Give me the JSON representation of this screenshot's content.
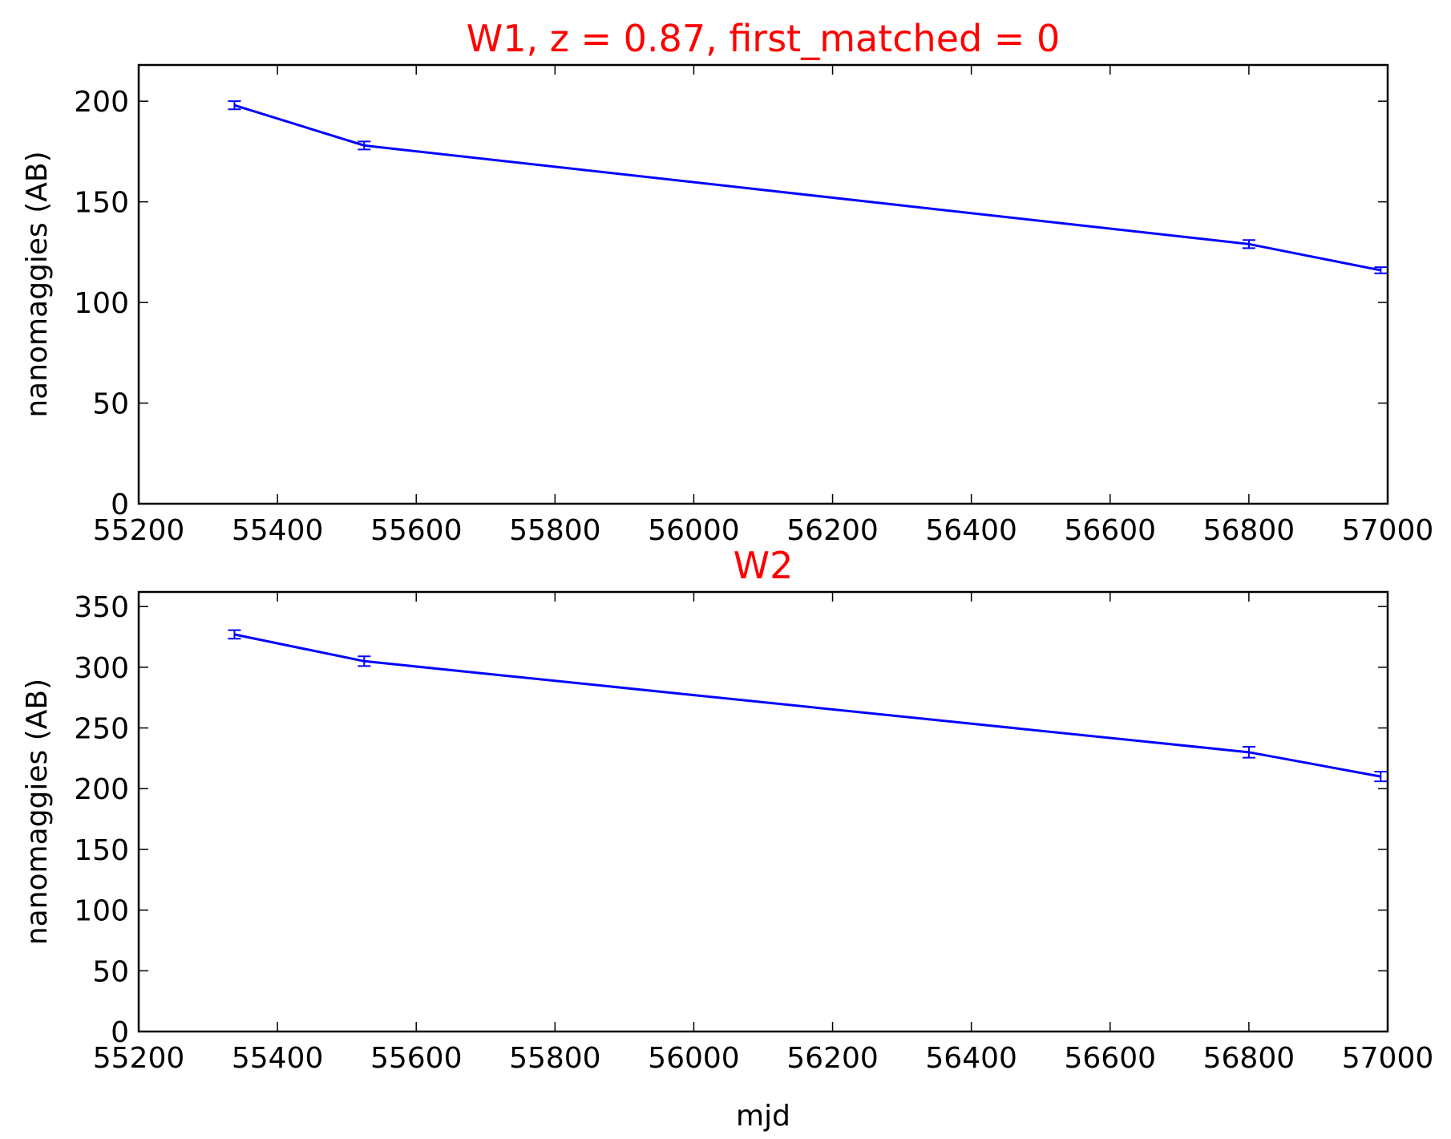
{
  "chart_data": [
    {
      "type": "line",
      "title": "W1, z = 0.87, first_matched = 0",
      "xlabel": "",
      "ylabel": "nanomaggies (AB)",
      "xlim": [
        55200,
        57000
      ],
      "ylim": [
        0,
        218
      ],
      "xticks": [
        55200,
        55400,
        55600,
        55800,
        56000,
        56200,
        56400,
        56600,
        56800,
        57000
      ],
      "yticks": [
        0,
        50,
        100,
        150,
        200
      ],
      "grid": false,
      "series": [
        {
          "color": "#0000ff",
          "x": [
            55338,
            55525,
            56800,
            56990
          ],
          "y": [
            198,
            178,
            129,
            116
          ],
          "yerr": [
            2,
            2,
            2,
            1.5
          ]
        }
      ]
    },
    {
      "type": "line",
      "title": "W2",
      "xlabel": "mjd",
      "ylabel": "nanomaggies (AB)",
      "xlim": [
        55200,
        57000
      ],
      "ylim": [
        0,
        362
      ],
      "xticks": [
        55200,
        55400,
        55600,
        55800,
        56000,
        56200,
        56400,
        56600,
        56800,
        57000
      ],
      "yticks": [
        0,
        50,
        100,
        150,
        200,
        250,
        300,
        350
      ],
      "grid": false,
      "series": [
        {
          "color": "#0000ff",
          "x": [
            55338,
            55525,
            56800,
            56990
          ],
          "y": [
            327,
            305,
            230,
            210
          ],
          "yerr": [
            3.5,
            4,
            4.5,
            4
          ]
        }
      ]
    }
  ]
}
